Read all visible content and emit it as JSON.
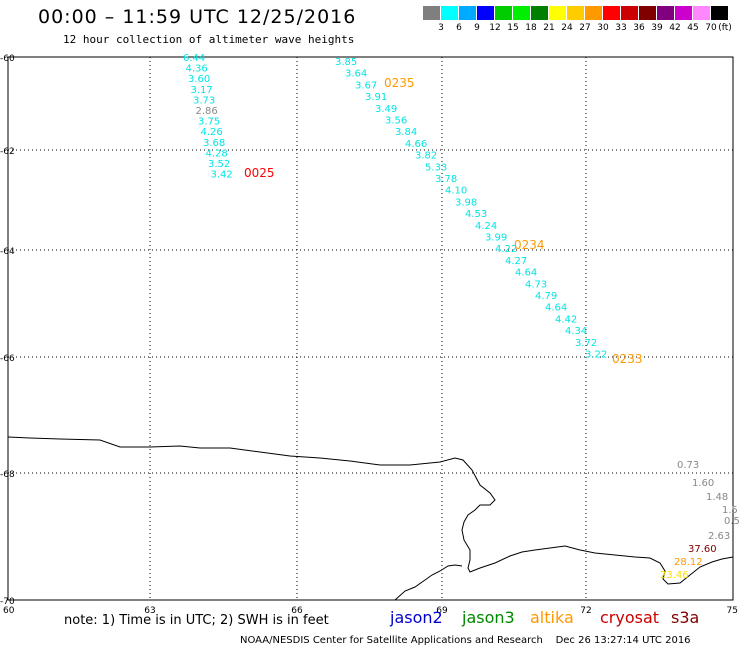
{
  "header": {
    "title": "00:00 – 11:59 UTC 12/25/2016",
    "subtitle": "12 hour collection of altimeter wave heights"
  },
  "colorbar": {
    "unit_label": "(ft)",
    "labels": [
      "3",
      "6",
      "9",
      "12",
      "15",
      "18",
      "21",
      "24",
      "27",
      "30",
      "33",
      "36",
      "39",
      "42",
      "45",
      "70"
    ],
    "colors": [
      "#7f7f7f",
      "#00ffff",
      "#00aaff",
      "#0000ff",
      "#00cc00",
      "#00ee00",
      "#008000",
      "#ffff00",
      "#ffcc00",
      "#ff9900",
      "#ff0000",
      "#cc0000",
      "#800000",
      "#800080",
      "#cc00cc",
      "#ff88ff",
      "#000000"
    ]
  },
  "axes": {
    "lat_labels": [
      "-60",
      "-62",
      "-64",
      "-66",
      "-68",
      "-70"
    ],
    "lon_labels": [
      "60",
      "63",
      "66",
      "69",
      "72",
      "75"
    ]
  },
  "time_labels": [
    {
      "text": "0025",
      "color": "#ff0000"
    },
    {
      "text": "0235",
      "color": "#ff9900"
    },
    {
      "text": "0234",
      "color": "#ff9900"
    },
    {
      "text": "0233",
      "color": "#ff9900"
    }
  ],
  "track1": {
    "values": [
      "6.44",
      "4.36",
      "3.60",
      "3.17",
      "3.73",
      "2.86",
      "3.75",
      "4.26",
      "3.68",
      "4.28",
      "3.52",
      "3.42"
    ],
    "colors": [
      "#00e5e5",
      "#00e5e5",
      "#00e5e5",
      "#00e5e5",
      "#00e5e5",
      "#888888",
      "#00e5e5",
      "#00e5e5",
      "#00e5e5",
      "#00e5e5",
      "#00e5e5",
      "#00e5e5"
    ]
  },
  "track2": {
    "values": [
      "3.85",
      "3.64",
      "3.67",
      "3.91",
      "3.49",
      "3.56",
      "3.84",
      "4.66",
      "3.82",
      "5.33",
      "3.78",
      "4.10",
      "3.98",
      "4.53",
      "4.24",
      "3.99",
      "4.22",
      "4.27",
      "4.64",
      "4.73",
      "4.79",
      "4.64",
      "4.42",
      "4.34",
      "3.72",
      "3.22"
    ]
  },
  "track3": {
    "values": [
      "0.73",
      "1.60",
      "1.48",
      "1.5",
      "0.5",
      "2.63",
      "37.60",
      "28.12",
      "23.46"
    ],
    "colors": [
      "#888888",
      "#888888",
      "#888888",
      "#888888",
      "#888888",
      "#888888",
      "#800000",
      "#ff9900",
      "#ffdd00"
    ]
  },
  "footer": {
    "note": "note: 1) Time is in UTC; 2) SWH is in feet",
    "credits": "NOAA/NESDIS Center for Satellite Applications and Research    Dec 26 13:27:14 UTC 2016",
    "satellites": [
      {
        "name": "jason2",
        "color": "#0000cc"
      },
      {
        "name": "jason3",
        "color": "#008800"
      },
      {
        "name": "altika",
        "color": "#ff9900"
      },
      {
        "name": "cryosat",
        "color": "#cc0000"
      },
      {
        "name": "s3a",
        "color": "#800000"
      }
    ]
  }
}
